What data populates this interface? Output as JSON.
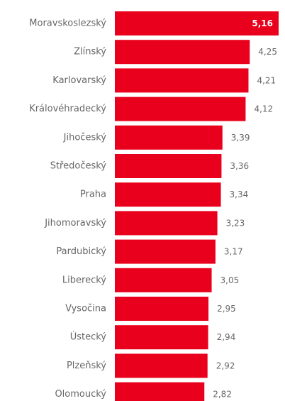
{
  "chart_data": {
    "type": "bar",
    "orientation": "horizontal",
    "categories": [
      "Moravskoslezský",
      "Zlínský",
      "Karlovarský",
      "Královéhradecký",
      "Jihočeský",
      "Středočeský",
      "Praha",
      "Jihomoravský",
      "Pardubický",
      "Liberecký",
      "Vysočina",
      "Ústecký",
      "Plzeňský",
      "Olomoucký"
    ],
    "values": [
      5.16,
      4.25,
      4.21,
      4.12,
      3.39,
      3.36,
      3.34,
      3.23,
      3.17,
      3.05,
      2.95,
      2.94,
      2.92,
      2.82
    ],
    "value_labels": [
      "5,16",
      "4,25",
      "4,21",
      "4,12",
      "3,39",
      "3,36",
      "3,34",
      "3,23",
      "3,17",
      "3,05",
      "2,95",
      "2,94",
      "2,92",
      "2,82"
    ],
    "xlim": [
      0,
      5.16
    ],
    "bar_color": "#e8001c",
    "title": "",
    "xlabel": "",
    "ylabel": "",
    "grid": false,
    "legend": "none"
  }
}
